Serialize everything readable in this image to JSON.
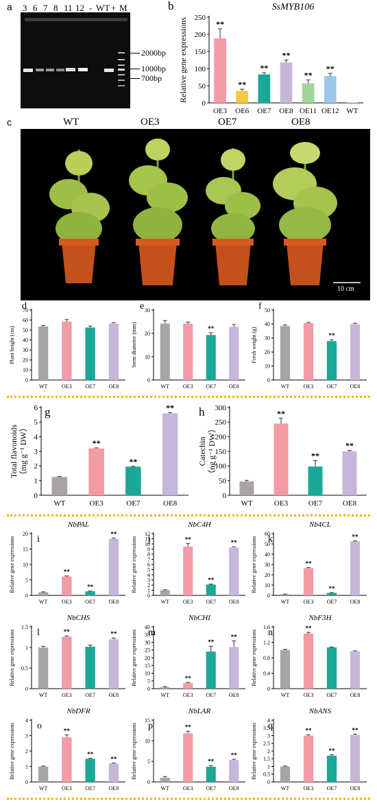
{
  "panels": {
    "a": {
      "letter": "a",
      "lane_labels": [
        "3",
        "6",
        "7",
        "8",
        "11",
        "12",
        "-",
        "WT",
        "+",
        "M"
      ],
      "marker_labels": [
        "2000bp",
        "1000bp",
        "700bp"
      ]
    },
    "c": {
      "letter": "c",
      "plant_labels": [
        "WT",
        "OE3",
        "OE7",
        "OE8"
      ],
      "scale_bar": "10 cm"
    }
  },
  "colors": {
    "WT": "#a9a4a4",
    "OE3": "#f49aa5",
    "OE6": "#f5c842",
    "OE7": "#1aa898",
    "OE8": "#c5b7d9",
    "OE11": "#9fd49a",
    "OE12": "#9cc6ea",
    "separator": "#f0b400"
  },
  "chart_data": [
    {
      "id": "b",
      "letter": "b",
      "type": "bar",
      "title": "SsMYB106",
      "ylabel": "Relative gene expressions",
      "ylim": [
        0,
        250
      ],
      "yticks": [
        0,
        50,
        100,
        150,
        200,
        250
      ],
      "categories": [
        "OE3",
        "OE6",
        "OE7",
        "OE8",
        "OE11",
        "OE12",
        "WT"
      ],
      "values": [
        188,
        35,
        83,
        118,
        57,
        78,
        1
      ],
      "errors": [
        28,
        5,
        5,
        7,
        10,
        8,
        0
      ],
      "sig": [
        "**",
        "**",
        "**",
        "**",
        "**",
        "**",
        ""
      ]
    },
    {
      "id": "d",
      "letter": "d",
      "type": "bar",
      "title": "",
      "ylabel": "Plant height (cm)",
      "ylim": [
        0,
        70
      ],
      "yticks": [
        0,
        10,
        20,
        30,
        40,
        50,
        60,
        70
      ],
      "categories": [
        "WT",
        "OE3",
        "OE7",
        "OE8"
      ],
      "values": [
        53.5,
        58.5,
        52.5,
        56.5
      ],
      "errors": [
        1.0,
        2.0,
        1.5,
        1.0
      ],
      "sig": [
        "",
        "",
        "",
        ""
      ]
    },
    {
      "id": "e",
      "letter": "e",
      "type": "bar",
      "title": "",
      "ylabel": "Stem diameter (mm)",
      "ylim": [
        0,
        30
      ],
      "yticks": [
        0,
        10,
        20,
        30
      ],
      "categories": [
        "WT",
        "OE3",
        "OE7",
        "OE8"
      ],
      "values": [
        24.2,
        24.2,
        19.3,
        22.8
      ],
      "errors": [
        1.3,
        0.6,
        1.0,
        1.0
      ],
      "sig": [
        "",
        "",
        "**",
        ""
      ]
    },
    {
      "id": "f",
      "letter": "f",
      "type": "bar",
      "title": "",
      "ylabel": "Fresh weight (g)",
      "ylim": [
        0,
        50
      ],
      "yticks": [
        0,
        10,
        20,
        30,
        40,
        50
      ],
      "categories": [
        "WT",
        "OE3",
        "OE7",
        "OE8"
      ],
      "values": [
        38.5,
        40.7,
        27.8,
        39.9
      ],
      "errors": [
        0.8,
        0.5,
        1.0,
        0.7
      ],
      "sig": [
        "",
        "",
        "**",
        ""
      ]
    },
    {
      "id": "g",
      "letter": "g",
      "type": "bar",
      "title": "",
      "ylabel": "Total flavonoids",
      "ylabel2": "（mg g⁻¹ DW）",
      "ylim": [
        0,
        6
      ],
      "yticks": [
        0,
        1,
        2,
        3,
        4,
        5,
        6
      ],
      "categories": [
        "WT",
        "OE3",
        "OE7",
        "OE8"
      ],
      "values": [
        1.25,
        3.2,
        1.95,
        5.6
      ],
      "errors": [
        0.03,
        0.04,
        0.03,
        0.04
      ],
      "sig": [
        "",
        "**",
        "**",
        "**"
      ]
    },
    {
      "id": "h",
      "letter": "h",
      "type": "bar",
      "title": "",
      "ylabel": "Catechin",
      "ylabel2": "（ng g⁻¹ DW）",
      "ylim": [
        0,
        300
      ],
      "yticks": [
        0,
        50,
        100,
        150,
        200,
        250,
        300
      ],
      "categories": [
        "WT",
        "OE3",
        "OE7",
        "OE8"
      ],
      "values": [
        47,
        245,
        98,
        150
      ],
      "errors": [
        4,
        18,
        20,
        3
      ],
      "sig": [
        "",
        "**",
        "**",
        "**"
      ]
    },
    {
      "id": "i",
      "letter": "i",
      "type": "bar",
      "title": "NbPAL",
      "ylabel": "Relative gene expressions",
      "ylim": [
        0,
        20
      ],
      "yticks": [
        0,
        5,
        10,
        15,
        20
      ],
      "categories": [
        "WT",
        "OE3",
        "OE7",
        "OE8"
      ],
      "values": [
        1,
        6.1,
        1.3,
        18.3
      ],
      "errors": [
        0.15,
        0.2,
        0.1,
        0.3
      ],
      "sig": [
        "",
        "**",
        "**",
        "**"
      ]
    },
    {
      "id": "j",
      "letter": "j",
      "type": "bar",
      "title": "NbC4H",
      "ylabel": "Relative gene expressions",
      "ylim": [
        0,
        12
      ],
      "yticks": [
        0,
        1,
        2,
        3,
        4,
        5,
        6,
        7,
        8,
        9,
        10,
        11,
        12
      ],
      "categories": [
        "WT",
        "OE3",
        "OE7",
        "OE8"
      ],
      "values": [
        1,
        9.5,
        2.1,
        9.3
      ],
      "errors": [
        0.1,
        0.6,
        0.1,
        0.15
      ],
      "sig": [
        "",
        "**",
        "**",
        "**"
      ]
    },
    {
      "id": "k",
      "letter": "k",
      "type": "bar",
      "title": "Nb4CL",
      "ylabel": "Relative gene expressions",
      "ylim": [
        0,
        60
      ],
      "yticks": [
        0,
        10,
        20,
        30,
        40,
        50,
        60
      ],
      "categories": [
        "WT",
        "OE3",
        "OE7",
        "OE8"
      ],
      "values": [
        1,
        26.5,
        2.4,
        52.5
      ],
      "errors": [
        0.2,
        0.5,
        0.3,
        0.4
      ],
      "sig": [
        "",
        "**",
        "**",
        "**"
      ]
    },
    {
      "id": "l",
      "letter": "l",
      "type": "bar",
      "title": "NbCHS",
      "ylabel": "Relative gene expressions",
      "ylim": [
        0,
        1.5
      ],
      "yticks": [
        0,
        0.5,
        1,
        1.5
      ],
      "categories": [
        "WT",
        "OE3",
        "OE7",
        "OE8"
      ],
      "values": [
        1.0,
        1.26,
        1.02,
        1.2
      ],
      "errors": [
        0.03,
        0.02,
        0.04,
        0.03
      ],
      "sig": [
        "",
        "**",
        "",
        "**"
      ]
    },
    {
      "id": "m",
      "letter": "m",
      "type": "bar",
      "title": "NbCHI",
      "ylabel": "Relative gene expressions",
      "ylim": [
        0,
        40
      ],
      "yticks": [
        0,
        5,
        10,
        15,
        20,
        25,
        30,
        35,
        40
      ],
      "categories": [
        "WT",
        "OE3",
        "OE7",
        "OE8"
      ],
      "values": [
        1,
        3.7,
        24,
        27
      ],
      "errors": [
        0.3,
        0.4,
        3.5,
        4
      ],
      "sig": [
        "",
        "**",
        "**",
        "**"
      ]
    },
    {
      "id": "n",
      "letter": "n",
      "type": "bar",
      "title": "NbF3H",
      "ylabel": "Relative gene expressions",
      "ylim": [
        0,
        1.6
      ],
      "yticks": [
        0,
        0.4,
        0.8,
        1.2,
        1.6
      ],
      "categories": [
        "WT",
        "OE3",
        "OE7",
        "OE8"
      ],
      "values": [
        1.0,
        1.43,
        1.07,
        0.97
      ],
      "errors": [
        0.02,
        0.03,
        0.01,
        0.01
      ],
      "sig": [
        "",
        "**",
        "",
        ""
      ]
    },
    {
      "id": "o",
      "letter": "o",
      "type": "bar",
      "title": "NbDFR",
      "ylabel": "Relative gene expressions",
      "ylim": [
        0,
        4
      ],
      "yticks": [
        0,
        1,
        2,
        3,
        4
      ],
      "categories": [
        "WT",
        "OE3",
        "OE7",
        "OE8"
      ],
      "values": [
        1.0,
        2.9,
        1.5,
        1.2
      ],
      "errors": [
        0.03,
        0.15,
        0.03,
        0.03
      ],
      "sig": [
        "",
        "**",
        "**",
        "**"
      ]
    },
    {
      "id": "p",
      "letter": "p",
      "type": "bar",
      "title": "NbLAR",
      "ylabel": "Relative gene expressions",
      "ylim": [
        0,
        15
      ],
      "yticks": [
        0,
        5,
        10,
        15
      ],
      "categories": [
        "WT",
        "OE3",
        "OE7",
        "OE8"
      ],
      "values": [
        1,
        11.8,
        3.7,
        5.3
      ],
      "errors": [
        0.3,
        0.5,
        0.3,
        0.2
      ],
      "sig": [
        "",
        "**",
        "**",
        "**"
      ]
    },
    {
      "id": "q",
      "letter": "q",
      "type": "bar",
      "title": "NbANS",
      "ylabel": "Relative gene expressions",
      "ylim": [
        0,
        4
      ],
      "yticks": [
        0,
        0.5,
        1,
        1.5,
        2,
        2.5,
        3,
        3.5,
        4
      ],
      "categories": [
        "WT",
        "OE3",
        "OE7",
        "OE8"
      ],
      "values": [
        1.0,
        3.0,
        1.7,
        3.05
      ],
      "errors": [
        0.03,
        0.06,
        0.06,
        0.05
      ],
      "sig": [
        "",
        "**",
        "**",
        "**"
      ]
    }
  ]
}
